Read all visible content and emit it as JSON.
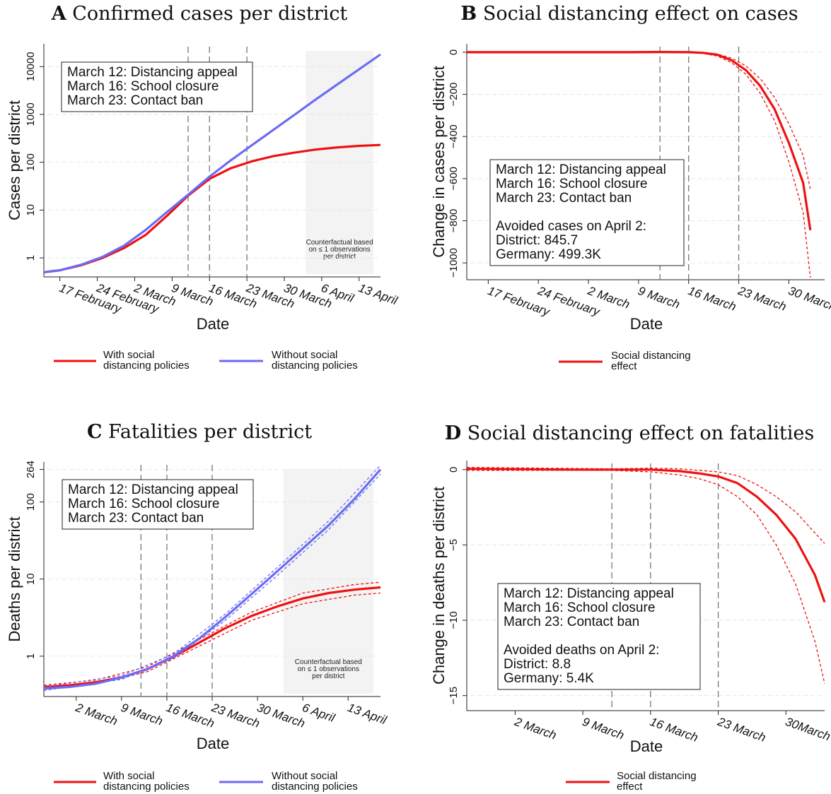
{
  "chart_data": [
    {
      "panel": "A",
      "title": "Confirmed cases per district",
      "type": "line",
      "yscale": "log",
      "xlabel": "Date",
      "ylabel": "Cases per district",
      "x_ticks": [
        {
          "day": 0,
          "label": "17 February"
        },
        {
          "day": 7,
          "label": "24 February"
        },
        {
          "day": 14,
          "label": "2 March"
        },
        {
          "day": 21,
          "label": "9 March"
        },
        {
          "day": 28,
          "label": "16 March"
        },
        {
          "day": 35,
          "label": "23 March"
        },
        {
          "day": 42,
          "label": "30 March"
        },
        {
          "day": 49,
          "label": "6 April"
        },
        {
          "day": 56,
          "label": "13 April"
        }
      ],
      "y_ticks": [
        1,
        10,
        100,
        1000,
        10000
      ],
      "y_tick_labels": [
        "1",
        "10",
        "100",
        "1000",
        "10000"
      ],
      "ylim": [
        0.4,
        30000
      ],
      "xlim": [
        -3,
        60
      ],
      "policy_lines": [
        24,
        28,
        35
      ],
      "annotation_lines": [
        "March 12: Distancing appeal",
        "March 16: School closure",
        "March 23: Contact ban"
      ],
      "counterfactual_region": [
        46,
        60
      ],
      "counterfactual_text": [
        "Counterfactual based",
        "on ≤ 1 observations",
        "per district"
      ],
      "series": [
        {
          "name": "With social distancing policies",
          "color": "#ee1111",
          "points": [
            [
              -3,
              0.5
            ],
            [
              0,
              0.55
            ],
            [
              4,
              0.7
            ],
            [
              8,
              1.0
            ],
            [
              12,
              1.6
            ],
            [
              16,
              3.0
            ],
            [
              20,
              7.5
            ],
            [
              24,
              20
            ],
            [
              28,
              45
            ],
            [
              32,
              75
            ],
            [
              36,
              105
            ],
            [
              40,
              135
            ],
            [
              44,
              160
            ],
            [
              48,
              185
            ],
            [
              52,
              205
            ],
            [
              56,
              220
            ],
            [
              60,
              230
            ]
          ]
        },
        {
          "name": "Without social distancing policies",
          "color": "#6b6bf5",
          "points": [
            [
              -3,
              0.5
            ],
            [
              0,
              0.55
            ],
            [
              4,
              0.72
            ],
            [
              8,
              1.05
            ],
            [
              12,
              1.8
            ],
            [
              16,
              3.8
            ],
            [
              20,
              9
            ],
            [
              24,
              21
            ],
            [
              28,
              50
            ],
            [
              32,
              110
            ],
            [
              36,
              230
            ],
            [
              40,
              480
            ],
            [
              44,
              1000
            ],
            [
              48,
              2100
            ],
            [
              52,
              4300
            ],
            [
              56,
              8800
            ],
            [
              60,
              18000
            ]
          ]
        }
      ],
      "legend": [
        {
          "label_lines": [
            "With social",
            "distancing policies"
          ],
          "color": "#ee1111"
        },
        {
          "label_lines": [
            "Without social",
            "distancing policies"
          ],
          "color": "#6b6bf5"
        }
      ]
    },
    {
      "panel": "B",
      "title": "Social distancing effect on cases",
      "type": "line",
      "xlabel": "Date",
      "ylabel": "Change in cases per district",
      "x_ticks": [
        {
          "day": 0,
          "label": "17 February"
        },
        {
          "day": 7,
          "label": "24 February"
        },
        {
          "day": 14,
          "label": "2 March"
        },
        {
          "day": 21,
          "label": "9 March"
        },
        {
          "day": 28,
          "label": "16 March"
        },
        {
          "day": 35,
          "label": "23 March"
        },
        {
          "day": 42,
          "label": "30 March"
        }
      ],
      "y_ticks": [
        0,
        -200,
        -400,
        -600,
        -800,
        -1000
      ],
      "y_tick_labels": [
        "0",
        "−200",
        "−400",
        "−600",
        "−800",
        "−1000"
      ],
      "ylim": [
        -1080,
        40
      ],
      "xlim": [
        -3,
        47
      ],
      "policy_lines": [
        24,
        28,
        35
      ],
      "annotation_lines": [
        "March 12: Distancing appeal",
        "March 16: School closure",
        "March 23: Contact ban",
        "",
        "Avoided cases on April 2:",
        " District:  845.7",
        " Germany: 499.3K"
      ],
      "series": [
        {
          "name": "Social distancing effect",
          "color": "#ee1111",
          "points": [
            [
              -3,
              0
            ],
            [
              10,
              0
            ],
            [
              20,
              0
            ],
            [
              24,
              1
            ],
            [
              28,
              0
            ],
            [
              30,
              -3
            ],
            [
              32,
              -12
            ],
            [
              34,
              -38
            ],
            [
              36,
              -85
            ],
            [
              38,
              -160
            ],
            [
              40,
              -270
            ],
            [
              42,
              -430
            ],
            [
              44,
              -620
            ],
            [
              45,
              -845
            ]
          ],
          "ci_upper": [
            [
              -3,
              0
            ],
            [
              24,
              2
            ],
            [
              28,
              1
            ],
            [
              30,
              -1
            ],
            [
              32,
              -8
            ],
            [
              34,
              -28
            ],
            [
              36,
              -65
            ],
            [
              38,
              -125
            ],
            [
              40,
              -215
            ],
            [
              42,
              -340
            ],
            [
              44,
              -490
            ],
            [
              45,
              -650
            ]
          ],
          "ci_lower": [
            [
              -3,
              0
            ],
            [
              24,
              0
            ],
            [
              28,
              -1
            ],
            [
              30,
              -6
            ],
            [
              32,
              -18
            ],
            [
              34,
              -50
            ],
            [
              36,
              -105
            ],
            [
              38,
              -195
            ],
            [
              40,
              -325
            ],
            [
              42,
              -520
            ],
            [
              44,
              -760
            ],
            [
              45,
              -1070
            ]
          ]
        }
      ],
      "legend": [
        {
          "label_lines": [
            "Social distancing",
            "effect"
          ],
          "color": "#ee1111"
        }
      ]
    },
    {
      "panel": "C",
      "title": "Fatalities per district",
      "type": "line",
      "yscale": "log",
      "xlabel": "Date",
      "ylabel": "Deaths per district",
      "x_ticks": [
        {
          "day": 14,
          "label": "2 March"
        },
        {
          "day": 21,
          "label": "9 March"
        },
        {
          "day": 28,
          "label": "16 March"
        },
        {
          "day": 35,
          "label": "23 March"
        },
        {
          "day": 42,
          "label": "30 March"
        },
        {
          "day": 49,
          "label": "6 April"
        },
        {
          "day": 56,
          "label": "13 April"
        }
      ],
      "y_ticks": [
        1,
        10,
        100,
        264
      ],
      "y_tick_labels": [
        "1",
        "10",
        "100",
        "264"
      ],
      "ylim": [
        0.3,
        330
      ],
      "xlim": [
        9,
        61
      ],
      "policy_lines": [
        24,
        28,
        35
      ],
      "annotation_lines": [
        "March 12: Distancing appeal",
        "March 16: School closure",
        "March 23: Contact ban"
      ],
      "counterfactual_region": [
        46,
        61
      ],
      "counterfactual_text": [
        "Counterfactual based",
        "on ≤ 1 observations",
        "per district"
      ],
      "series": [
        {
          "name": "With social distancing policies",
          "color": "#ee1111",
          "points": [
            [
              9,
              0.4
            ],
            [
              13,
              0.42
            ],
            [
              17,
              0.46
            ],
            [
              21,
              0.53
            ],
            [
              25,
              0.68
            ],
            [
              29,
              0.98
            ],
            [
              33,
              1.5
            ],
            [
              37,
              2.3
            ],
            [
              41,
              3.3
            ],
            [
              45,
              4.4
            ],
            [
              49,
              5.6
            ],
            [
              53,
              6.6
            ],
            [
              57,
              7.3
            ],
            [
              61,
              7.8
            ]
          ],
          "ci_upper": [
            [
              9,
              0.42
            ],
            [
              17,
              0.49
            ],
            [
              25,
              0.73
            ],
            [
              33,
              1.65
            ],
            [
              41,
              3.7
            ],
            [
              49,
              6.6
            ],
            [
              57,
              8.5
            ],
            [
              61,
              9.1
            ]
          ],
          "ci_lower": [
            [
              9,
              0.38
            ],
            [
              17,
              0.43
            ],
            [
              25,
              0.63
            ],
            [
              33,
              1.35
            ],
            [
              41,
              2.9
            ],
            [
              49,
              4.8
            ],
            [
              57,
              6.2
            ],
            [
              61,
              6.6
            ]
          ]
        },
        {
          "name": "Without social distancing policies",
          "color": "#6b6bf5",
          "points": [
            [
              9,
              0.38
            ],
            [
              13,
              0.4
            ],
            [
              17,
              0.44
            ],
            [
              21,
              0.53
            ],
            [
              25,
              0.68
            ],
            [
              29,
              1.0
            ],
            [
              33,
              1.7
            ],
            [
              37,
              3.2
            ],
            [
              41,
              6.3
            ],
            [
              45,
              12.5
            ],
            [
              49,
              25
            ],
            [
              53,
              50
            ],
            [
              57,
              110
            ],
            [
              61,
              264
            ]
          ],
          "ci_upper": [
            [
              9,
              0.4
            ],
            [
              21,
              0.56
            ],
            [
              29,
              1.06
            ],
            [
              37,
              3.5
            ],
            [
              45,
              14
            ],
            [
              53,
              57
            ],
            [
              61,
              300
            ]
          ],
          "ci_lower": [
            [
              9,
              0.36
            ],
            [
              21,
              0.5
            ],
            [
              29,
              0.94
            ],
            [
              37,
              2.9
            ],
            [
              45,
              11
            ],
            [
              53,
              44
            ],
            [
              61,
              230
            ]
          ]
        }
      ],
      "legend": [
        {
          "label_lines": [
            "With social",
            "distancing policies"
          ],
          "color": "#ee1111"
        },
        {
          "label_lines": [
            "Without social",
            "distancing policies"
          ],
          "color": "#6b6bf5"
        }
      ]
    },
    {
      "panel": "D",
      "title": "Social distancing effect on fatalities",
      "type": "line",
      "xlabel": "Date",
      "ylabel": "Change in deaths per district",
      "x_ticks": [
        {
          "day": 14,
          "label": "2 March"
        },
        {
          "day": 21,
          "label": "9 March"
        },
        {
          "day": 28,
          "label": "16 March"
        },
        {
          "day": 35,
          "label": "23 March"
        },
        {
          "day": 42,
          "label": "30March"
        }
      ],
      "y_ticks": [
        0,
        -5,
        -10,
        -15
      ],
      "y_tick_labels": [
        "0",
        "−5",
        "−10",
        "−15"
      ],
      "ylim": [
        -16,
        0.6
      ],
      "xlim": [
        9,
        46
      ],
      "policy_lines": [
        24,
        28,
        35
      ],
      "annotation_lines": [
        "March 12: Distancing appeal",
        "March 16: School closure",
        "March 23: Contact ban",
        "",
        "Avoided deaths on April 2:",
        " District:  8.8",
        " Germany: 5.4K"
      ],
      "series": [
        {
          "name": "Social distancing effect",
          "color": "#ee1111",
          "points": [
            [
              9,
              0.05
            ],
            [
              20,
              0
            ],
            [
              24,
              0
            ],
            [
              28,
              0
            ],
            [
              31,
              -0.1
            ],
            [
              33,
              -0.25
            ],
            [
              35,
              -0.45
            ],
            [
              37,
              -0.9
            ],
            [
              39,
              -1.8
            ],
            [
              41,
              -3.0
            ],
            [
              43,
              -4.6
            ],
            [
              45,
              -7.0
            ],
            [
              46,
              -8.8
            ]
          ],
          "ci_upper": [
            [
              9,
              0.15
            ],
            [
              24,
              0.05
            ],
            [
              28,
              0.1
            ],
            [
              31,
              0.05
            ],
            [
              33,
              -0.05
            ],
            [
              35,
              -0.15
            ],
            [
              37,
              -0.4
            ],
            [
              39,
              -1.0
            ],
            [
              41,
              -1.8
            ],
            [
              43,
              -2.8
            ],
            [
              45,
              -4.2
            ],
            [
              46,
              -4.9
            ]
          ],
          "ci_lower": [
            [
              9,
              -0.05
            ],
            [
              24,
              -0.05
            ],
            [
              28,
              -0.15
            ],
            [
              31,
              -0.35
            ],
            [
              33,
              -0.6
            ],
            [
              35,
              -1.0
            ],
            [
              37,
              -1.8
            ],
            [
              39,
              -3.0
            ],
            [
              41,
              -5.0
            ],
            [
              43,
              -7.6
            ],
            [
              45,
              -11.4
            ],
            [
              46,
              -14.2
            ]
          ]
        }
      ],
      "legend": [
        {
          "label_lines": [
            "Social distancing",
            "effect"
          ],
          "color": "#ee1111"
        }
      ]
    }
  ]
}
